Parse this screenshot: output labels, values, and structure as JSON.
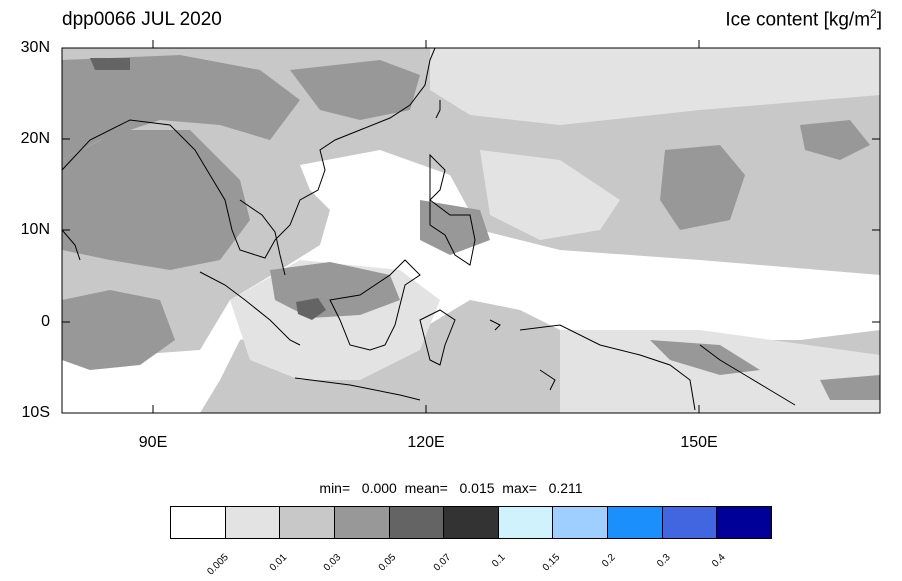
{
  "title": {
    "left": "dpp0066 JUL 2020",
    "right_main": "Ice content  [kg/m",
    "right_sup": "2",
    "right_end": "]"
  },
  "map": {
    "y_labels": [
      "30N",
      "20N",
      "10N",
      "0",
      "10S"
    ],
    "x_labels": [
      "90E",
      "120E",
      "150E"
    ],
    "region": "Maritime Continent / Western Pacific",
    "land_outline_color": "#000000"
  },
  "stats": {
    "text": "min=   0.000  mean=   0.015  max=   0.211"
  },
  "colorbar": {
    "colors": [
      "#ffffff",
      "#e3e3e3",
      "#c8c8c8",
      "#989898",
      "#646464",
      "#333333",
      "#cff2fd",
      "#9fcffe",
      "#1b8ffb",
      "#4266e0",
      "#000099"
    ],
    "ticks": [
      "0.005",
      "0.01",
      "0.03",
      "0.05",
      "0.07",
      "0.1",
      "0.15",
      "0.2",
      "0.3",
      "0.4"
    ]
  }
}
